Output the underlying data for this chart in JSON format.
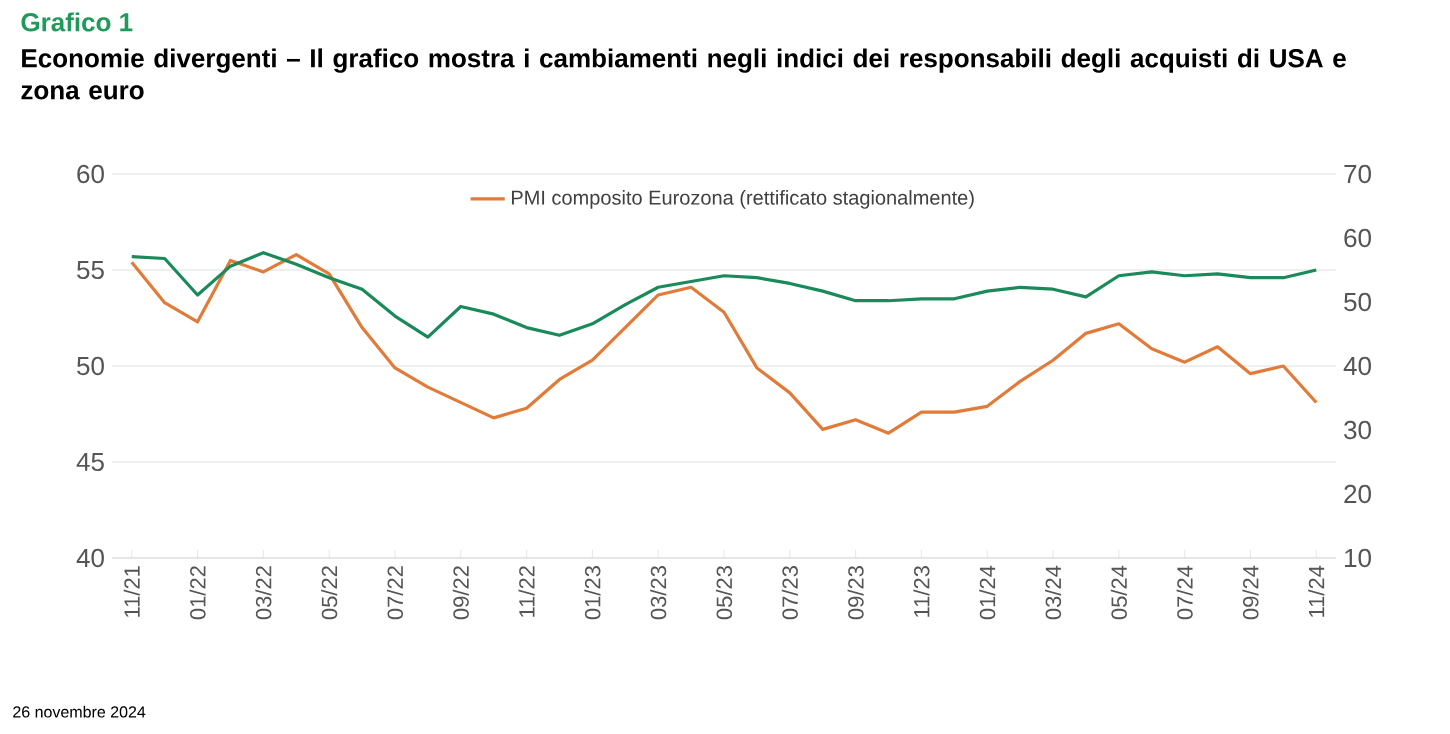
{
  "chart_data": {
    "type": "line",
    "title": "Grafico 1",
    "subtitle": "Economie divergenti – Il grafico mostra i cambiamenti negli indici dei responsabili degli acquisti di USA e zona euro",
    "categories": [
      "11/21",
      null,
      "01/22",
      null,
      "03/22",
      null,
      "05/22",
      null,
      "07/22",
      null,
      "09/22",
      null,
      "11/22",
      null,
      "01/23",
      null,
      "03/23",
      null,
      "05/23",
      null,
      "07/23",
      null,
      "09/23",
      null,
      "11/23",
      null,
      "01/24",
      null,
      "03/24",
      null,
      "05/24",
      null,
      "07/24",
      null,
      "09/24",
      null,
      "11/24"
    ],
    "series": [
      {
        "name": "PMI composito Eurozona (rettificato stagionalmente)",
        "color": "#e07b39",
        "values": [
          55.4,
          53.3,
          52.3,
          55.5,
          54.9,
          55.8,
          54.8,
          52.0,
          49.9,
          48.9,
          48.1,
          47.3,
          47.8,
          49.3,
          50.3,
          52.0,
          53.7,
          54.1,
          52.8,
          49.9,
          48.6,
          46.7,
          47.2,
          46.5,
          47.6,
          47.6,
          47.9,
          49.2,
          50.3,
          51.7,
          52.2,
          50.9,
          50.2,
          51.0,
          49.6,
          50.0,
          48.1
        ]
      },
      {
        "color": "#1a8a5a",
        "axis": "y2",
        "values": [
          57.1,
          56.8,
          51.1,
          55.6,
          57.7,
          55.9,
          53.8,
          52.0,
          47.8,
          44.5,
          49.3,
          48.1,
          46.0,
          44.8,
          46.6,
          49.6,
          52.3,
          53.2,
          54.1,
          53.8,
          52.9,
          51.7,
          50.2,
          50.2,
          50.5,
          50.5,
          51.7,
          52.3,
          52.0,
          50.8,
          54.1,
          54.7,
          54.1,
          54.4,
          53.8,
          53.8,
          55.0
        ]
      }
    ],
    "ylim": [
      40,
      60
    ],
    "yticks": [
      40,
      45,
      50,
      55,
      60
    ],
    "y2lim": [
      10,
      70
    ],
    "y2ticks": [
      10,
      20,
      30,
      40,
      50,
      60,
      70
    ],
    "grid": "y",
    "legend": "top",
    "marker": "none",
    "line_style": "solid",
    "annotations": [
      "26 novembre 2024"
    ]
  }
}
